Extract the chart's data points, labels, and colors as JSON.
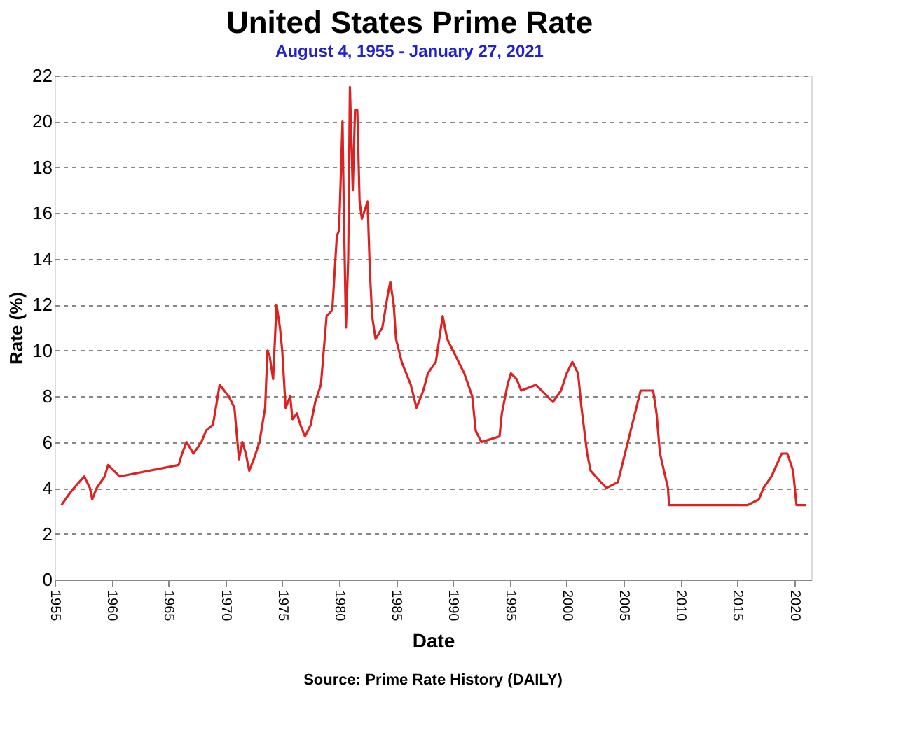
{
  "chart_data": {
    "type": "line",
    "title": "United States Prime Rate",
    "subtitle": "August 4, 1955  -  January 27, 2021",
    "xlabel": "Date",
    "ylabel": "Rate (%)",
    "annotations": [
      "Source: Prime Rate History (DAILY)"
    ],
    "x": [
      1955.6,
      1956.3,
      1956.7,
      1957.6,
      1958.1,
      1958.3,
      1958.7,
      1959.4,
      1959.7,
      1960.7,
      1965.9,
      1966.2,
      1966.6,
      1967.2,
      1967.9,
      1968.3,
      1968.9,
      1969.0,
      1969.5,
      1970.3,
      1970.8,
      1971.2,
      1971.5,
      1971.8,
      1972.1,
      1972.5,
      1973.0,
      1973.5,
      1973.7,
      1973.9,
      1974.2,
      1974.5,
      1974.8,
      1975.0,
      1975.3,
      1975.7,
      1975.9,
      1976.3,
      1976.6,
      1977.0,
      1977.5,
      1977.9,
      1978.4,
      1978.9,
      1979.4,
      1979.8,
      1980.0,
      1980.3,
      1980.4,
      1980.6,
      1980.8,
      1980.95,
      1981.2,
      1981.4,
      1981.6,
      1981.8,
      1982.0,
      1982.5,
      1982.7,
      1982.9,
      1983.2,
      1983.8,
      1984.3,
      1984.5,
      1984.8,
      1985.0,
      1985.5,
      1986.3,
      1986.8,
      1987.4,
      1987.8,
      1988.5,
      1989.1,
      1989.5,
      1990.0,
      1991.0,
      1991.7,
      1992.0,
      1992.5,
      1994.1,
      1994.3,
      1994.8,
      1995.1,
      1995.6,
      1996.0,
      1997.3,
      1998.8,
      1999.5,
      2000.0,
      2000.5,
      2001.0,
      2001.3,
      2001.8,
      2002.1,
      2003.0,
      2003.5,
      2004.5,
      2005.0,
      2006.0,
      2006.5,
      2007.6,
      2007.9,
      2008.2,
      2008.9,
      2009.0,
      2015.9,
      2016.9,
      2017.3,
      2018.0,
      2018.9,
      2019.4,
      2019.9,
      2020.2,
      2021.07
    ],
    "series": [
      {
        "color": "#dd2222",
        "values": [
          3.25,
          3.75,
          4,
          4.5,
          4,
          3.5,
          4,
          4.5,
          5,
          4.5,
          5,
          5.5,
          6,
          5.5,
          6,
          6.5,
          6.75,
          7,
          8.5,
          8,
          7.5,
          5.25,
          6,
          5.5,
          4.75,
          5.25,
          6,
          7.5,
          10,
          9.75,
          8.75,
          12,
          11,
          10,
          7.5,
          8,
          7,
          7.25,
          6.75,
          6.25,
          6.75,
          7.75,
          8.5,
          11.5,
          11.75,
          15,
          15.25,
          20,
          16.5,
          11,
          14,
          21.5,
          17,
          20.5,
          20.5,
          16.5,
          15.75,
          16.5,
          13.5,
          11.5,
          10.5,
          11,
          12.5,
          13,
          12,
          10.5,
          9.5,
          8.5,
          7.5,
          8.25,
          9,
          9.5,
          11.5,
          10.5,
          10,
          9,
          8,
          6.5,
          6,
          6.25,
          7.25,
          8.5,
          9,
          8.75,
          8.25,
          8.5,
          7.75,
          8.25,
          9,
          9.5,
          9,
          7.5,
          5.5,
          4.75,
          4.25,
          4,
          4.25,
          5.25,
          7.25,
          8.25,
          8.25,
          7.25,
          5.5,
          4,
          3.25,
          3.25,
          3.5,
          4.0,
          4.5,
          5.5,
          5.5,
          4.75,
          3.25,
          3.25
        ]
      }
    ],
    "xlim": [
      1955,
      2021.5
    ],
    "xticks": [
      1955,
      1960,
      1965,
      1970,
      1975,
      1980,
      1985,
      1990,
      1995,
      2000,
      2005,
      2010,
      2015,
      2020
    ],
    "ylim": [
      0,
      22
    ],
    "yticks": [
      0,
      2,
      4,
      6,
      8,
      10,
      12,
      14,
      16,
      18,
      20,
      22
    ],
    "grid": "y",
    "line_style": "solid",
    "marker": "none"
  }
}
